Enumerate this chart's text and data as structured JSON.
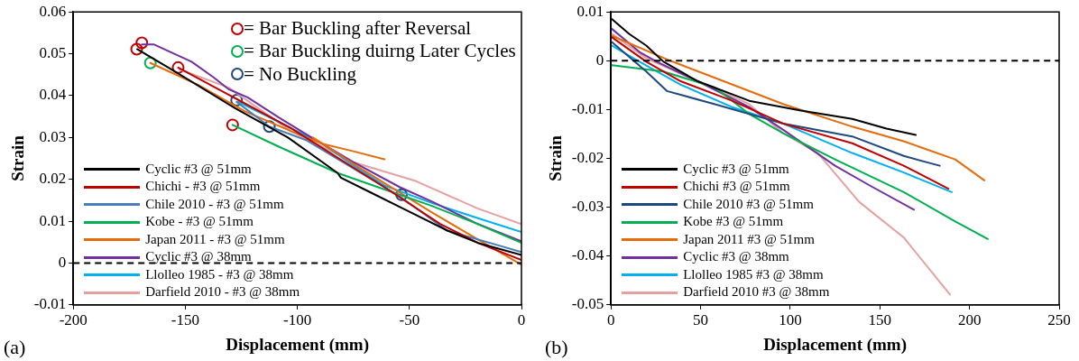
{
  "chart_data": [
    {
      "type": "line",
      "xlabel": "Displacement (mm)",
      "ylabel": "Strain",
      "xlim": [
        -200,
        0
      ],
      "xticks": [
        -200,
        -150,
        -100,
        -50,
        0
      ],
      "ylim": [
        -0.01,
        0.06
      ],
      "yticks": [
        -0.01,
        0,
        0.01,
        0.02,
        0.03,
        0.04,
        0.05,
        0.06
      ],
      "grid": false,
      "legend": "bottom left",
      "marker": "none",
      "line_style": "solid",
      "annotations": [
        "(a)"
      ],
      "ref_lines": [
        {
          "axis": "y",
          "value": 0,
          "color": "#000000",
          "line_style": "dashed"
        }
      ],
      "series": [
        {
          "name": "Cyclic #3 @ 51mm",
          "color": "#000000",
          "x": [
            -171.5,
            -154.2,
            -127.8,
            -104.2,
            -82,
            -80.6,
            -66.7,
            -52.8,
            -33.3,
            -19.4,
            0
          ],
          "values": [
            0.0511,
            0.0456,
            0.037,
            0.03,
            0.0215,
            0.0204,
            0.0167,
            0.013,
            0.0078,
            0.0048,
            0.0019
          ]
        },
        {
          "name": "Chichi - #3 @ 51mm",
          "color": "#c00000",
          "x": [
            -153.2,
            -102.8,
            -61.1,
            -36.1,
            -19.4,
            0
          ],
          "values": [
            0.0467,
            0.0322,
            0.0181,
            0.0093,
            0.0048,
            0.0007
          ]
        },
        {
          "name": "Chile 2010 - #3 @ 51mm",
          "color": "#4a7ebb",
          "x": [
            -127.1,
            -112.5,
            -95.8,
            -75,
            -54.2,
            -33.3,
            0
          ],
          "values": [
            0.0385,
            0.0326,
            0.0293,
            0.0226,
            0.0159,
            0.0078,
            0.0026
          ]
        },
        {
          "name": "Kobe - #3 @ 51mm",
          "color": "#00b050",
          "x": [
            -128.9,
            -108.3,
            -82,
            -63.9,
            -40.3,
            -19.4,
            0
          ],
          "values": [
            0.033,
            0.0278,
            0.0215,
            0.0181,
            0.0137,
            0.0093,
            0.0048
          ]
        },
        {
          "name": "Japan 2011 - #3 @ 51mm",
          "color": "#e46c0a",
          "x": [
            -165.6,
            -144.4,
            -123.6,
            -102.8,
            -88.9,
            -75,
            -61.1,
            -77,
            -93,
            -75,
            -40.3,
            -19.4,
            0
          ],
          "values": [
            0.0478,
            0.0426,
            0.0363,
            0.0315,
            0.0285,
            0.0267,
            0.0248,
            null,
            0.03,
            0.0237,
            0.0122,
            0.0056,
            -0.0004
          ]
        },
        {
          "name": "Cyclic #3 @ 38mm",
          "color": "#7030a0",
          "x": [
            -169.4,
            -163.9,
            -147.2,
            -137.5,
            -130.6,
            -122.2,
            -108.3,
            -95.8,
            -75,
            -54.2,
            -40.3,
            -19.4,
            0
          ],
          "values": [
            0.0522,
            0.0522,
            0.0481,
            0.0444,
            0.0415,
            0.0396,
            0.0348,
            0.0307,
            0.0241,
            0.0181,
            0.0148,
            0.0093,
            0.0052
          ]
        },
        {
          "name": "Llolleo 1985 - #3 @ 38mm",
          "color": "#00b0f0",
          "x": [
            -126.4,
            -109.7,
            -88.9,
            -75,
            -61.1,
            -40.3,
            -19.4,
            0
          ],
          "values": [
            0.0385,
            0.0341,
            0.0285,
            0.0233,
            0.0185,
            0.0144,
            0.0107,
            0.0074
          ]
        },
        {
          "name": "Darfield 2010 - #3 @ 38mm",
          "color": "#e6a0a0",
          "x": [
            -152.8,
            -130.6,
            -102.8,
            -75,
            -47.2,
            -19.4,
            0
          ],
          "values": [
            0.0463,
            0.0419,
            0.0315,
            0.0241,
            0.0196,
            0.013,
            0.0093
          ]
        },
        {
          "name": "= Bar Buckling after Reversal",
          "type": "scatter",
          "marker": "circle",
          "color": "#c00000",
          "x": [
            -171.7,
            -169.4,
            -153.2,
            -128.9
          ],
          "values": [
            0.0511,
            0.0526,
            0.0467,
            0.033
          ]
        },
        {
          "name": "= Bar Buckling duirng Later Cycles",
          "type": "scatter",
          "marker": "circle",
          "color": "#00b050",
          "x": [
            -165.6
          ],
          "values": [
            0.0478
          ]
        },
        {
          "name": "= No Buckling",
          "type": "scatter",
          "marker": "circle",
          "color": "#1f497d",
          "x": [
            -127.1,
            -112.5,
            -53.5
          ],
          "values": [
            0.0389,
            0.0326,
            0.0163
          ]
        }
      ]
    },
    {
      "type": "line",
      "xlabel": "Displacement (mm)",
      "ylabel": "Strain",
      "xlim": [
        0,
        250
      ],
      "xticks": [
        0,
        50,
        100,
        150,
        200,
        250
      ],
      "ylim": [
        -0.05,
        0.01
      ],
      "yticks": [
        -0.05,
        -0.04,
        -0.03,
        -0.02,
        -0.01,
        0,
        0.01
      ],
      "grid": false,
      "legend": "bottom left",
      "marker": "none",
      "line_style": "solid",
      "annotations": [
        "(b)"
      ],
      "ref_lines": [
        {
          "axis": "y",
          "value": 0,
          "color": "#000000",
          "line_style": "dashed"
        }
      ],
      "series": [
        {
          "name": "Cyclic #3 @ 51mm",
          "color": "#000000",
          "x": [
            0.6,
            10.1,
            19.7,
            29.3,
            48.4,
            77.1,
            105.9,
            134.6,
            153.7,
            170
          ],
          "values": [
            0.0085,
            0.0055,
            0.0031,
            -0.0002,
            -0.0042,
            -0.0082,
            -0.0102,
            -0.0119,
            -0.0139,
            -0.0152
          ]
        },
        {
          "name": "Chichi #3 @ 51mm",
          "color": "#c00000",
          "x": [
            0.6,
            19.7,
            38.9,
            67.6,
            96.3,
            134.6,
            163.3,
            188.2
          ],
          "values": [
            0.0048,
            -0.0002,
            -0.0042,
            -0.0082,
            -0.0129,
            -0.0169,
            -0.0215,
            -0.0262
          ]
        },
        {
          "name": "Chile 2010 #3 @ 51mm",
          "color": "#1f497d",
          "x": [
            0.6,
            19.7,
            31.2,
            58,
            96.3,
            134.6,
            163.3,
            183.4
          ],
          "values": [
            0.0038,
            -0.0022,
            -0.0062,
            -0.0089,
            -0.0129,
            -0.0155,
            -0.0195,
            -0.0215
          ]
        },
        {
          "name": "Kobe #3 @ 51mm",
          "color": "#00b050",
          "x": [
            0.6,
            29.3,
            58,
            77.1,
            96.3,
            125,
            163.3,
            192,
            210.2
          ],
          "values": [
            -0.0009,
            -0.0022,
            -0.0055,
            -0.0109,
            -0.0149,
            -0.0202,
            -0.0269,
            -0.0329,
            -0.0365
          ]
        },
        {
          "name": "Japan 2011 #3 @ 51mm",
          "color": "#e46c0a",
          "x": [
            0.6,
            33.1,
            58,
            96.3,
            134.6,
            163.3,
            192,
            208.3
          ],
          "values": [
            0.0051,
            0,
            -0.0035,
            -0.0089,
            -0.0135,
            -0.0165,
            -0.0202,
            -0.0245
          ]
        },
        {
          "name": "Cyclic #3 @ 38mm",
          "color": "#7030a0",
          "x": [
            0.6,
            15.9,
            25.5,
            48.4,
            77.1,
            96.3,
            125,
            144.1,
            169
          ],
          "values": [
            0.0065,
            0.0018,
            -0.0002,
            -0.0042,
            -0.0095,
            -0.0142,
            -0.0215,
            -0.0255,
            -0.0305
          ]
        },
        {
          "name": "Llolleo 1985 #3 @ 38mm",
          "color": "#00b0f0",
          "x": [
            0.6,
            15.9,
            38.9,
            67.6,
            96.3,
            134.6,
            163.3,
            190.1
          ],
          "values": [
            0.0031,
            -0.0002,
            -0.0049,
            -0.0095,
            -0.0129,
            -0.0189,
            -0.0229,
            -0.0269
          ]
        },
        {
          "name": "Darfield 2010 #3 @ 38mm",
          "color": "#e6a0a0",
          "x": [
            0.6,
            19.7,
            48.4,
            77.1,
            96.3,
            115.4,
            138.4,
            163.3,
            189.1
          ],
          "values": [
            0.0055,
            0.0005,
            -0.0042,
            -0.0089,
            -0.0149,
            -0.0189,
            -0.0289,
            -0.0362,
            -0.0479
          ]
        }
      ]
    }
  ]
}
